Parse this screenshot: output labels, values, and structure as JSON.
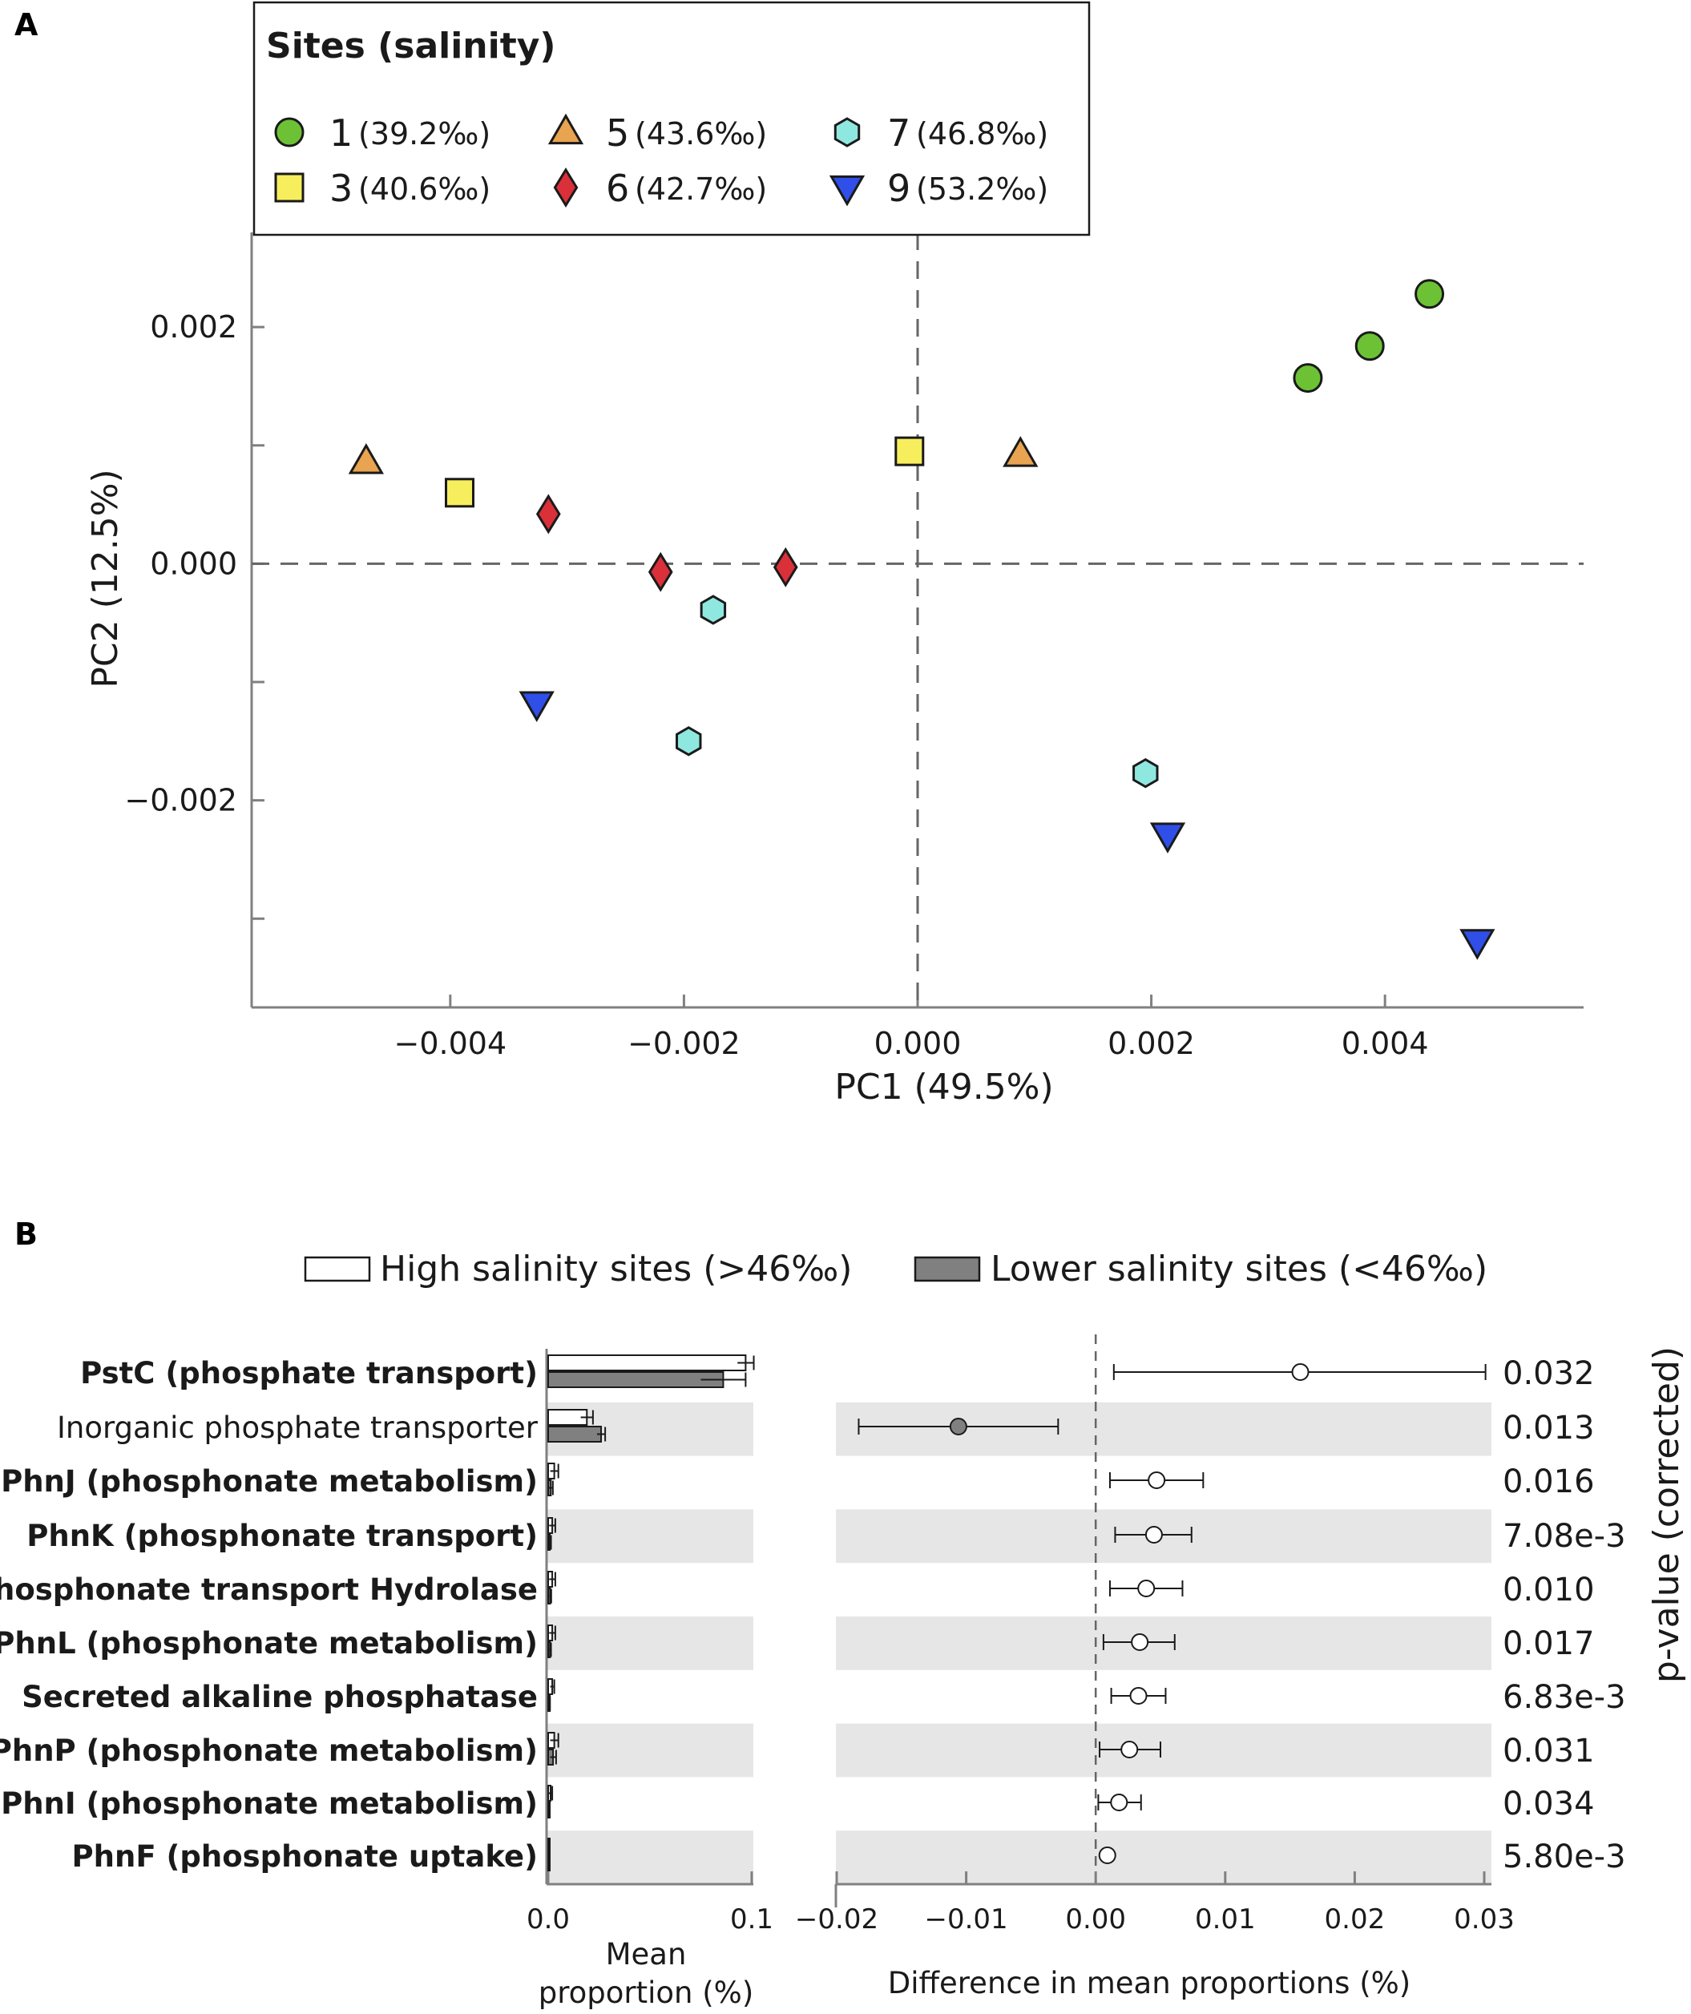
{
  "chart_data": [
    {
      "type": "scatter",
      "panel_label": "A",
      "xlabel": "PC1 (49.5%)",
      "ylabel": "PC2 (12.5%)",
      "xlim": [
        -0.0057,
        0.0057
      ],
      "ylim": [
        -0.00375,
        0.0028
      ],
      "x_ticks": [
        -0.004,
        -0.002,
        0.0,
        0.002,
        0.004
      ],
      "x_tick_labels": [
        "−0.004",
        "−0.002",
        "0.000",
        "0.002",
        "0.004"
      ],
      "y_ticks": [
        0.002,
        0.0,
        -0.002
      ],
      "y_tick_labels": [
        "0.002",
        "0.000",
        "−0.002"
      ],
      "y_minor_ticks": [
        0.001,
        -0.001,
        -0.003
      ],
      "reference_lines": {
        "x": 0.0,
        "y": 0.0
      },
      "legend": {
        "title": "Sites (salinity)",
        "placement": "top-left"
      },
      "series": [
        {
          "name": "1",
          "salinity": "(39.2‰)",
          "marker": "circle",
          "color": "#6cc234",
          "points": [
            [
              0.00334,
              0.00157
            ],
            [
              0.00387,
              0.00184
            ],
            [
              0.00438,
              0.00228
            ]
          ]
        },
        {
          "name": "3",
          "salinity": "(40.6‰)",
          "marker": "square",
          "color": "#f7ee5e",
          "points": [
            [
              -0.00392,
              0.0006
            ],
            [
              -7e-05,
              0.00095
            ]
          ]
        },
        {
          "name": "5",
          "salinity": "(43.6‰)",
          "marker": "triangle-up",
          "color": "#e8a450",
          "points": [
            [
              -0.00472,
              0.00086
            ],
            [
              0.00088,
              0.00092
            ]
          ]
        },
        {
          "name": "6",
          "salinity": "(42.7‰)",
          "marker": "diamond",
          "color": "#d9303a",
          "points": [
            [
              -0.00316,
              0.00042
            ],
            [
              -0.0022,
              -7e-05
            ],
            [
              -0.00113,
              -3e-05
            ]
          ]
        },
        {
          "name": "7",
          "salinity": "(46.8‰)",
          "marker": "hexagon",
          "color": "#8fe8e0",
          "points": [
            [
              -0.00175,
              -0.00039
            ],
            [
              -0.00196,
              -0.0015
            ],
            [
              0.00195,
              -0.00177
            ]
          ]
        },
        {
          "name": "9",
          "salinity": "(53.2‰)",
          "marker": "triangle-down",
          "color": "#2f4fe8",
          "points": [
            [
              -0.00326,
              -0.00118
            ],
            [
              0.00214,
              -0.00229
            ],
            [
              0.00479,
              -0.00319
            ]
          ]
        }
      ]
    },
    {
      "type": "bar",
      "panel_label": "B",
      "legend": [
        {
          "label": "High salinity sites (>46‰)",
          "color": "#ffffff"
        },
        {
          "label": "Lower salinity sites (<46‰)",
          "color": "#808080"
        }
      ],
      "xlabel_line1": "Mean",
      "xlabel_line2": "proportion (%)",
      "xlim": [
        0.0,
        0.1
      ],
      "x_tick_labels": [
        "0.0",
        "0.1"
      ],
      "categories": [
        {
          "label": "PstC (phosphate transport)",
          "bold": true
        },
        {
          "label": "Inorganic phosphate transporter",
          "bold": false
        },
        {
          "label": "PhnJ (phosphonate metabolism)",
          "bold": true
        },
        {
          "label": "PhnK (phosphonate transport)",
          "bold": true
        },
        {
          "label": "Phosphonate transport Hydrolase",
          "bold": true
        },
        {
          "label": "PhnL (phosphonate metabolism)",
          "bold": true
        },
        {
          "label": "Secreted alkaline phosphatase",
          "bold": true
        },
        {
          "label": "PhnP (phosphonate metabolism)",
          "bold": true
        },
        {
          "label": "PhnI (phosphonate metabolism)",
          "bold": true
        },
        {
          "label": "PhnF (phosphonate uptake)",
          "bold": true
        }
      ],
      "series": [
        {
          "name": "High salinity sites (>46‰)",
          "values": [
            0.097,
            0.019,
            0.003,
            0.002,
            0.002,
            0.002,
            0.002,
            0.003,
            0.0012,
            0.0004
          ],
          "errors": [
            0.004,
            0.003,
            0.002,
            0.0015,
            0.0015,
            0.0015,
            0.001,
            0.002,
            0.0008,
            0.0003
          ]
        },
        {
          "name": "Lower salinity sites (<46‰)",
          "values": [
            0.086,
            0.026,
            0.0013,
            0.0008,
            0.001,
            0.0009,
            0.0006,
            0.0024,
            0.0005,
            0.0003
          ],
          "errors": [
            0.011,
            0.002,
            0.001,
            0.0006,
            0.0005,
            0.0005,
            0.0003,
            0.0015,
            0.0003,
            0.0002
          ]
        }
      ]
    },
    {
      "type": "scatter",
      "subtype": "confidence-interval",
      "xlabel": "Difference in mean proportions (%)",
      "xlim": [
        -0.02,
        0.03
      ],
      "x_ticks": [
        -0.02,
        -0.01,
        0.0,
        0.01,
        0.02,
        0.03
      ],
      "x_tick_labels": [
        "−0.02",
        "−0.01",
        "0.00",
        "0.01",
        "0.02",
        "0.03"
      ],
      "differences": [
        0.0158,
        -0.0106,
        0.0047,
        0.0045,
        0.0039,
        0.0034,
        0.0033,
        0.0026,
        0.0018,
        0.0009
      ],
      "ci_low": [
        0.0014,
        -0.0183,
        0.0011,
        0.0015,
        0.0011,
        0.0006,
        0.0012,
        0.0003,
        0.0002,
        null
      ],
      "ci_high": [
        0.0301,
        -0.0029,
        0.0083,
        0.0074,
        0.0067,
        0.0061,
        0.0054,
        0.005,
        0.0035,
        null
      ],
      "marker_fill": [
        "#ffffff",
        "#808080",
        "#ffffff",
        "#ffffff",
        "#ffffff",
        "#ffffff",
        "#ffffff",
        "#ffffff",
        "#ffffff",
        "#ffffff"
      ],
      "pvalue_axis_label": "p-value (corrected)",
      "p_values": [
        "0.032",
        "0.013",
        "0.016",
        "7.08e-3",
        "0.010",
        "0.017",
        "6.83e-3",
        "0.031",
        "0.034",
        "5.80e-3"
      ]
    }
  ],
  "colors": {
    "axis": "#808080",
    "stripe": "#e6e6e6",
    "text": "#1a1a1a",
    "dash": "#666666"
  }
}
